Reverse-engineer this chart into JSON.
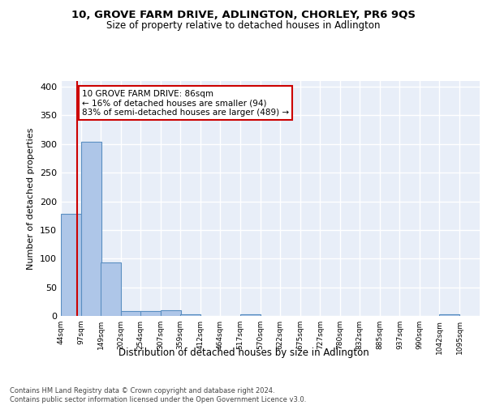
{
  "title1": "10, GROVE FARM DRIVE, ADLINGTON, CHORLEY, PR6 9QS",
  "title2": "Size of property relative to detached houses in Adlington",
  "xlabel": "Distribution of detached houses by size in Adlington",
  "ylabel": "Number of detached properties",
  "bar_left_edges": [
    44,
    97,
    149,
    202,
    254,
    307,
    359,
    412,
    464,
    517,
    570,
    622,
    675,
    727,
    780,
    832,
    885,
    937,
    990,
    1042
  ],
  "bar_heights": [
    178,
    304,
    93,
    8,
    8,
    10,
    3,
    0,
    0,
    3,
    0,
    0,
    0,
    0,
    0,
    0,
    0,
    0,
    0,
    3
  ],
  "bin_width": 53,
  "bar_color": "#aec6e8",
  "bar_edge_color": "#5a8fc2",
  "property_size": 86,
  "vline_color": "#cc0000",
  "annotation_text": "10 GROVE FARM DRIVE: 86sqm\n← 16% of detached houses are smaller (94)\n83% of semi-detached houses are larger (489) →",
  "annotation_box_color": "#ffffff",
  "annotation_box_edge": "#cc0000",
  "ylim": [
    0,
    410
  ],
  "yticks": [
    0,
    50,
    100,
    150,
    200,
    250,
    300,
    350,
    400
  ],
  "xtick_labels": [
    "44sqm",
    "97sqm",
    "149sqm",
    "202sqm",
    "254sqm",
    "307sqm",
    "359sqm",
    "412sqm",
    "464sqm",
    "517sqm",
    "570sqm",
    "622sqm",
    "675sqm",
    "727sqm",
    "780sqm",
    "832sqm",
    "885sqm",
    "937sqm",
    "990sqm",
    "1042sqm",
    "1095sqm"
  ],
  "footer_text": "Contains HM Land Registry data © Crown copyright and database right 2024.\nContains public sector information licensed under the Open Government Licence v3.0.",
  "bg_color": "#e8eef8",
  "grid_color": "#ffffff"
}
